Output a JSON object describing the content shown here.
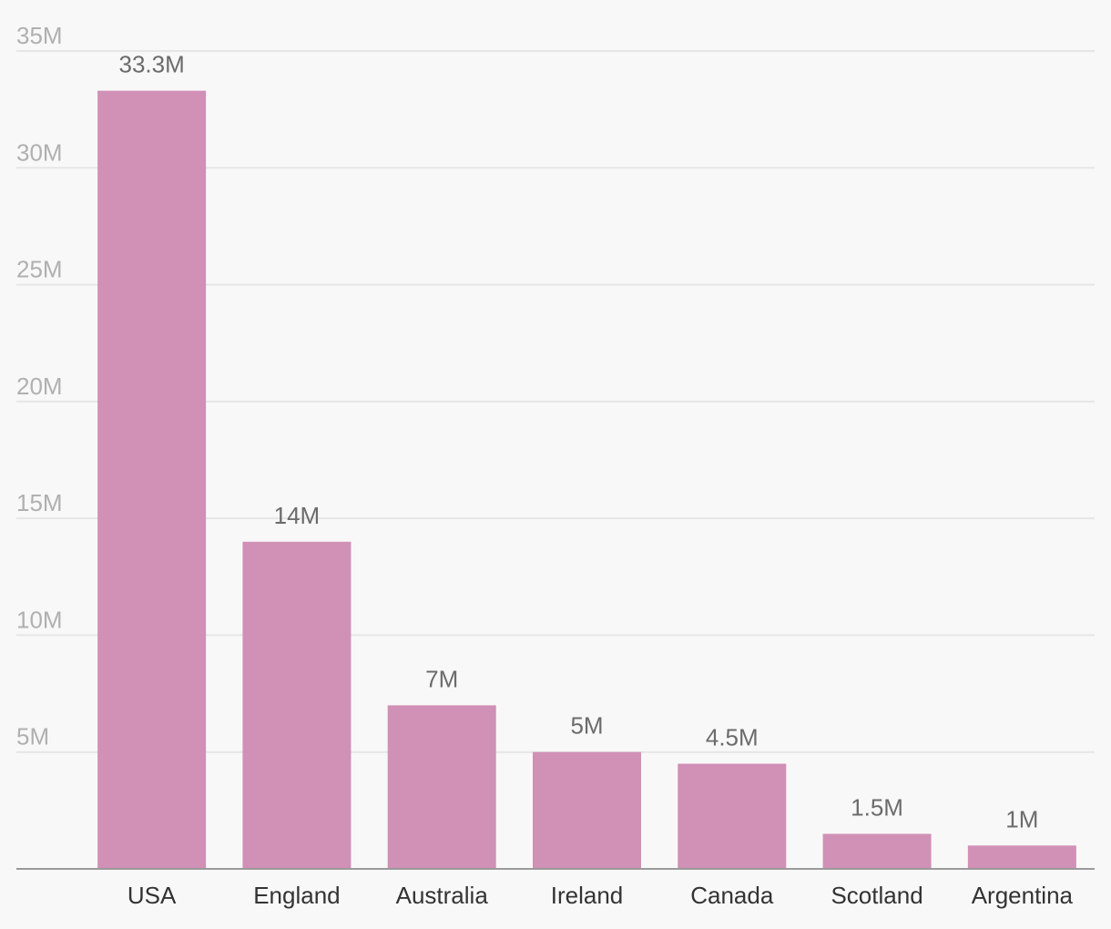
{
  "chart_data": {
    "type": "bar",
    "title": "",
    "xlabel": "",
    "ylabel": "",
    "ylim": [
      0,
      35
    ],
    "grid": true,
    "legend": "none",
    "categories": [
      "USA",
      "England",
      "Australia",
      "Ireland",
      "Canada",
      "Scotland",
      "Argentina"
    ],
    "values": [
      33.3,
      14,
      7,
      5,
      4.5,
      1.5,
      1
    ],
    "data_labels": [
      "33.3M",
      "14M",
      "7M",
      "5M",
      "4.5M",
      "1.5M",
      "1M"
    ],
    "yticks": [
      {
        "value": 5,
        "label": "5M"
      },
      {
        "value": 10,
        "label": "10M"
      },
      {
        "value": 15,
        "label": "15M"
      },
      {
        "value": 20,
        "label": "20M"
      },
      {
        "value": 25,
        "label": "25M"
      },
      {
        "value": 30,
        "label": "30M"
      },
      {
        "value": 35,
        "label": "35M"
      }
    ],
    "colors": {
      "bar": "#d190b6",
      "grid": "#e6e6e6",
      "baseline": "#9a9a9a",
      "background": "#f9f8f8"
    }
  }
}
